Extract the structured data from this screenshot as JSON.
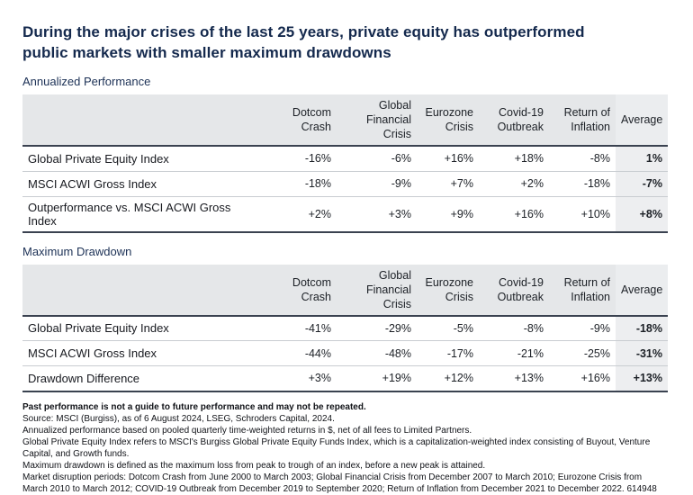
{
  "title": {
    "line1": "During the major crises of the last 25 years, private equity has outperformed",
    "line2": "public markets with smaller maximum drawdowns"
  },
  "colors": {
    "title_navy": "#14294d",
    "header_background": "#e5e7e9",
    "average_column_background": "#edeef0",
    "dark_border": "#3a4250",
    "row_divider": "#c9cdd1"
  },
  "tables": {
    "annualized": {
      "section_label": "Annualized Performance",
      "columns": [
        {
          "line1": "Dotcom",
          "line2": "Crash"
        },
        {
          "line1": "Global",
          "line2": "Financial Crisis"
        },
        {
          "line1": "Eurozone",
          "line2": "Crisis"
        },
        {
          "line1": "Covid-19",
          "line2": "Outbreak"
        },
        {
          "line1": "Return of",
          "line2": "Inflation"
        },
        {
          "line1": "Average",
          "line2": ""
        }
      ],
      "rows": [
        {
          "label": "Global Private Equity Index",
          "values": [
            "-16%",
            "-6%",
            "+16%",
            "+18%",
            "-8%",
            "1%"
          ]
        },
        {
          "label": "MSCI ACWI Gross Index",
          "values": [
            "-18%",
            "-9%",
            "+7%",
            "+2%",
            "-18%",
            "-7%"
          ]
        },
        {
          "label": "Outperformance vs. MSCI ACWI Gross Index",
          "values": [
            "+2%",
            "+3%",
            "+9%",
            "+16%",
            "+10%",
            "+8%"
          ]
        }
      ]
    },
    "drawdown": {
      "section_label": "Maximum Drawdown",
      "columns": [
        {
          "line1": "Dotcom",
          "line2": "Crash"
        },
        {
          "line1": "Global",
          "line2": "Financial Crisis"
        },
        {
          "line1": "Eurozone",
          "line2": "Crisis"
        },
        {
          "line1": "Covid-19",
          "line2": "Outbreak"
        },
        {
          "line1": "Return of",
          "line2": "Inflation"
        },
        {
          "line1": "Average",
          "line2": ""
        }
      ],
      "rows": [
        {
          "label": "Global Private Equity Index",
          "values": [
            "-41%",
            "-29%",
            "-5%",
            "-8%",
            "-9%",
            "-18%"
          ]
        },
        {
          "label": "MSCI ACWI Gross Index",
          "values": [
            "-44%",
            "-48%",
            "-17%",
            "-21%",
            "-25%",
            "-31%"
          ]
        },
        {
          "label": "Drawdown Difference",
          "values": [
            "+3%",
            "+19%",
            "+12%",
            "+13%",
            "+16%",
            "+13%"
          ]
        }
      ]
    }
  },
  "footnotes": {
    "bold_line": "Past performance is not a guide to future performance and may not be repeated.",
    "lines": [
      "Source: MSCI (Burgiss), as of 6 August 2024, LSEG, Schroders Capital, 2024.",
      "Annualized performance based on pooled quarterly time-weighted returns in $, net of all fees to Limited Partners.",
      "Global Private Equity Index refers to MSCI's Burgiss Global Private Equity Funds Index, which is a capitalization-weighted index consisting of Buyout, Venture Capital, and Growth funds.",
      "Maximum drawdown is defined as the maximum loss from peak to trough of an index, before a new peak is attained.",
      "Market disruption periods: Dotcom Crash from June 2000 to March 2003; Global Financial Crisis from December 2007 to March 2010; Eurozone Crisis from March 2010 to March 2012; COVID-19 Outbreak from December 2019 to September 2020; Return of Inflation from December 2021 to December 2022. 614948"
    ]
  }
}
